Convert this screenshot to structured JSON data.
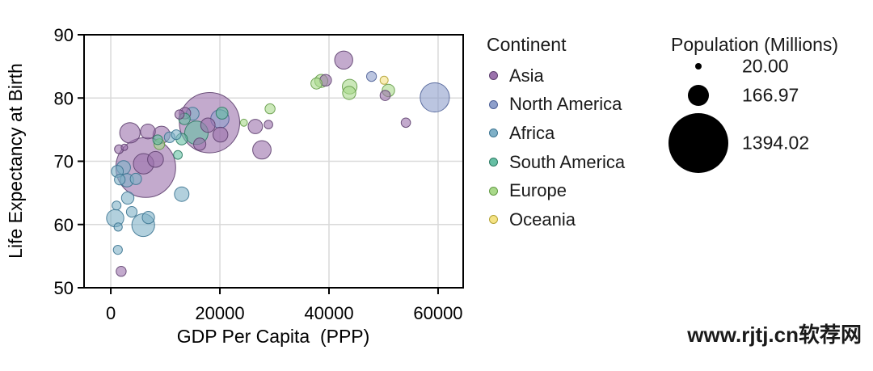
{
  "watermark": "www.rjtj.cn软荐网",
  "chart_data": {
    "type": "scatter",
    "subtype": "bubble",
    "title": "",
    "xlabel": "GDP Per Capita  (PPP)",
    "ylabel": "Life Expectancy at Birth",
    "xlim": [
      -4900,
      64600
    ],
    "ylim": [
      50,
      90
    ],
    "xticks": [
      0,
      20000,
      40000,
      60000
    ],
    "xtick_labels": [
      "0",
      "20000",
      "40000",
      "60000"
    ],
    "yticks": [
      50,
      60,
      70,
      80,
      90
    ],
    "ytick_labels": [
      "50",
      "60",
      "70",
      "80",
      "90"
    ],
    "grid": true,
    "grid_color": "#d9d9d9",
    "size_encoding": "bubble radius (px) = sqrt(population_millions)",
    "point_format": [
      "gdp_per_capita_ppp",
      "life_expectancy_at_birth",
      "population_millions"
    ],
    "series": [
      {
        "name": "Asia",
        "color": "#9b72ac",
        "stroke": "#5d3f6e",
        "points": [
          [
            1900,
            52.6,
            38
          ],
          [
            1500,
            71.9,
            30
          ],
          [
            2500,
            72.2,
            16
          ],
          [
            3500,
            74.5,
            160
          ],
          [
            6800,
            74.7,
            85
          ],
          [
            9300,
            74.2,
            110
          ],
          [
            6400,
            69.0,
            1366
          ],
          [
            6000,
            69.6,
            160
          ],
          [
            8200,
            70.3,
            96
          ],
          [
            12600,
            77.4,
            32
          ],
          [
            13600,
            77.6,
            51
          ],
          [
            18100,
            76.1,
            1394.02
          ],
          [
            17800,
            75.7,
            80
          ],
          [
            20100,
            74.2,
            85
          ],
          [
            16300,
            72.7,
            58
          ],
          [
            26500,
            75.5,
            80
          ],
          [
            27700,
            71.8,
            130
          ],
          [
            28900,
            75.8,
            28
          ],
          [
            39400,
            82.8,
            52
          ],
          [
            42700,
            86.0,
            126
          ],
          [
            50300,
            80.4,
            40
          ],
          [
            54100,
            76.1,
            34
          ]
        ]
      },
      {
        "name": "North America",
        "color": "#8e9fcb",
        "stroke": "#4d5f96",
        "points": [
          [
            20000,
            76.7,
            128
          ],
          [
            47800,
            83.4,
            37
          ],
          [
            59400,
            80.1,
            329
          ]
        ]
      },
      {
        "name": "Africa",
        "color": "#7fb0c7",
        "stroke": "#3c7491",
        "points": [
          [
            800,
            61.0,
            115
          ],
          [
            1050,
            63.0,
            30
          ],
          [
            1350,
            59.6,
            26
          ],
          [
            1300,
            56.0,
            31
          ],
          [
            3100,
            64.2,
            60
          ],
          [
            3850,
            62.0,
            43
          ],
          [
            5950,
            59.9,
            200
          ],
          [
            6900,
            61.1,
            58
          ],
          [
            13000,
            64.8,
            81
          ],
          [
            1200,
            68.4,
            55
          ],
          [
            2350,
            69.0,
            72
          ],
          [
            1650,
            67.1,
            43
          ],
          [
            2950,
            67.0,
            69
          ],
          [
            4600,
            67.2,
            49
          ],
          [
            10800,
            73.8,
            43
          ],
          [
            12000,
            74.2,
            36
          ],
          [
            15000,
            77.5,
            64
          ]
        ]
      },
      {
        "name": "South America",
        "color": "#66bfa4",
        "stroke": "#2c7a63",
        "points": [
          [
            8600,
            73.4,
            36
          ],
          [
            13000,
            73.5,
            50
          ],
          [
            15700,
            74.5,
            211
          ],
          [
            13500,
            76.7,
            50
          ],
          [
            20400,
            77.6,
            55
          ],
          [
            12300,
            71.0,
            29
          ]
        ]
      },
      {
        "name": "Europe",
        "color": "#a9d98a",
        "stroke": "#629a45",
        "points": [
          [
            8900,
            72.7,
            44
          ],
          [
            24400,
            76.1,
            19
          ],
          [
            29200,
            78.3,
            38
          ],
          [
            37700,
            82.3,
            47
          ],
          [
            38600,
            82.7,
            65
          ],
          [
            43800,
            81.8,
            83
          ],
          [
            43700,
            80.8,
            67
          ],
          [
            50900,
            81.2,
            60
          ]
        ]
      },
      {
        "name": "Oceania",
        "color": "#f5e385",
        "stroke": "#b3a235",
        "points": [
          [
            50100,
            82.8,
            25
          ]
        ]
      }
    ],
    "legend": {
      "continent_title": "Continent",
      "continents": [
        "Asia",
        "North America",
        "Africa",
        "South America",
        "Europe",
        "Oceania"
      ],
      "size_title": "Population (Millions)",
      "size_labels": [
        "20.00",
        "166.97",
        "1394.02"
      ],
      "size_values": [
        20.0,
        166.97,
        1394.02
      ],
      "position": "right"
    }
  }
}
